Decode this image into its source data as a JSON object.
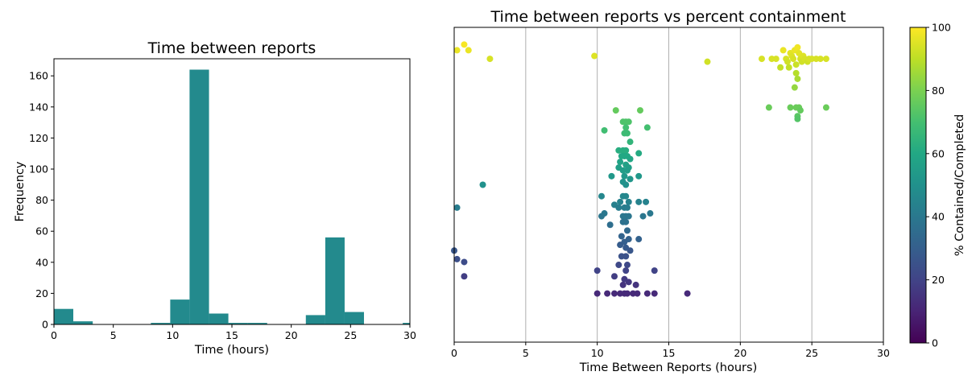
{
  "chart_data": [
    {
      "type": "bar",
      "title": "Time between reports",
      "xlabel": "Time (hours)",
      "ylabel": "Frequency",
      "xlim": [
        0,
        30
      ],
      "ylim": [
        0,
        171
      ],
      "xticks": [
        0,
        5,
        10,
        15,
        20,
        25,
        30
      ],
      "yticks": [
        0,
        20,
        40,
        60,
        80,
        100,
        120,
        140,
        160
      ],
      "bar_color": "#238a8d",
      "bins": [
        {
          "start": 0.0,
          "end": 1.63,
          "count": 10
        },
        {
          "start": 1.63,
          "end": 3.27,
          "count": 2
        },
        {
          "start": 8.17,
          "end": 9.8,
          "count": 1
        },
        {
          "start": 9.8,
          "end": 11.43,
          "count": 16
        },
        {
          "start": 11.43,
          "end": 13.07,
          "count": 164
        },
        {
          "start": 13.07,
          "end": 14.7,
          "count": 7
        },
        {
          "start": 14.7,
          "end": 16.33,
          "count": 1
        },
        {
          "start": 16.33,
          "end": 17.97,
          "count": 1
        },
        {
          "start": 21.23,
          "end": 22.87,
          "count": 6
        },
        {
          "start": 22.87,
          "end": 24.5,
          "count": 56
        },
        {
          "start": 24.5,
          "end": 26.13,
          "count": 8
        },
        {
          "start": 29.4,
          "end": 31.03,
          "count": 1
        }
      ]
    },
    {
      "type": "scatter",
      "title": "Time between reports vs percent containment",
      "xlabel": "Time Between Reports (hours)",
      "xlim": [
        0,
        30
      ],
      "ylim": [
        -5,
        105
      ],
      "xticks": [
        0,
        5,
        10,
        15,
        20,
        25,
        30
      ],
      "grid": "vertical",
      "colormap": "viridis",
      "colorbar": {
        "label": "% Contained/Completed",
        "ticks": [
          0,
          20,
          40,
          60,
          80,
          100
        ],
        "range": [
          0,
          100
        ]
      },
      "points": [
        [
          0.7,
          99
        ],
        [
          0.2,
          97
        ],
        [
          1.0,
          97
        ],
        [
          2.5,
          94
        ],
        [
          9.8,
          95
        ],
        [
          17.7,
          93
        ],
        [
          21.5,
          94
        ],
        [
          22.2,
          94
        ],
        [
          22.5,
          94
        ],
        [
          22.8,
          91
        ],
        [
          23.0,
          97
        ],
        [
          23.2,
          94
        ],
        [
          23.3,
          93
        ],
        [
          23.4,
          91
        ],
        [
          23.5,
          96
        ],
        [
          23.6,
          95
        ],
        [
          23.7,
          94
        ],
        [
          23.8,
          97
        ],
        [
          23.9,
          92
        ],
        [
          24.0,
          98
        ],
        [
          24.1,
          96
        ],
        [
          24.2,
          94
        ],
        [
          24.3,
          93
        ],
        [
          24.4,
          95
        ],
        [
          24.5,
          94
        ],
        [
          24.7,
          93
        ],
        [
          24.8,
          94
        ],
        [
          25.0,
          94
        ],
        [
          25.3,
          94
        ],
        [
          25.6,
          94
        ],
        [
          26.0,
          94
        ],
        [
          23.9,
          89
        ],
        [
          24.0,
          87
        ],
        [
          23.8,
          84
        ],
        [
          22.0,
          77
        ],
        [
          23.5,
          77
        ],
        [
          23.9,
          77
        ],
        [
          24.1,
          77
        ],
        [
          24.0,
          74
        ],
        [
          24.0,
          73
        ],
        [
          26.0,
          77
        ],
        [
          24.2,
          76
        ],
        [
          11.3,
          76
        ],
        [
          13.0,
          76
        ],
        [
          11.8,
          72
        ],
        [
          12.0,
          72
        ],
        [
          12.2,
          72
        ],
        [
          12.0,
          70
        ],
        [
          10.5,
          69
        ],
        [
          13.5,
          70
        ],
        [
          11.9,
          68
        ],
        [
          12.1,
          68
        ],
        [
          12.3,
          65
        ],
        [
          11.5,
          62
        ],
        [
          11.8,
          62
        ],
        [
          12.0,
          62
        ],
        [
          12.9,
          61
        ],
        [
          11.7,
          60
        ],
        [
          11.9,
          60
        ],
        [
          12.1,
          60
        ],
        [
          12.3,
          59
        ],
        [
          11.6,
          58
        ],
        [
          12.0,
          57
        ],
        [
          12.2,
          56
        ],
        [
          11.5,
          56
        ],
        [
          11.8,
          55
        ],
        [
          12.1,
          55
        ],
        [
          11.0,
          53
        ],
        [
          11.9,
          53
        ],
        [
          12.3,
          52
        ],
        [
          12.9,
          53
        ],
        [
          11.8,
          51
        ],
        [
          12.0,
          50
        ],
        [
          10.3,
          46
        ],
        [
          11.8,
          46
        ],
        [
          12.0,
          46
        ],
        [
          11.6,
          44
        ],
        [
          11.2,
          43
        ],
        [
          12.2,
          44
        ],
        [
          12.9,
          44
        ],
        [
          13.4,
          44
        ],
        [
          11.5,
          42
        ],
        [
          11.9,
          42
        ],
        [
          12.1,
          42
        ],
        [
          10.5,
          40
        ],
        [
          10.3,
          39
        ],
        [
          11.8,
          39
        ],
        [
          12.0,
          39
        ],
        [
          12.2,
          39
        ],
        [
          13.7,
          40
        ],
        [
          13.2,
          39
        ],
        [
          11.8,
          37
        ],
        [
          12.0,
          37
        ],
        [
          10.9,
          36
        ],
        [
          12.1,
          34
        ],
        [
          11.7,
          32
        ],
        [
          12.2,
          31
        ],
        [
          12.9,
          31
        ],
        [
          11.9,
          30
        ],
        [
          11.6,
          29
        ],
        [
          12.0,
          28
        ],
        [
          12.3,
          27
        ],
        [
          11.7,
          25
        ],
        [
          12.0,
          25
        ],
        [
          11.5,
          22
        ],
        [
          12.1,
          22
        ],
        [
          10.0,
          20
        ],
        [
          12.0,
          20
        ],
        [
          14.0,
          20
        ],
        [
          11.2,
          18
        ],
        [
          11.9,
          17
        ],
        [
          12.2,
          16
        ],
        [
          12.7,
          15
        ],
        [
          11.8,
          15
        ],
        [
          10.0,
          12
        ],
        [
          10.7,
          12
        ],
        [
          11.2,
          12
        ],
        [
          11.6,
          12
        ],
        [
          11.9,
          12
        ],
        [
          12.1,
          12
        ],
        [
          12.5,
          12
        ],
        [
          12.8,
          12
        ],
        [
          13.5,
          12
        ],
        [
          14.0,
          12
        ],
        [
          16.3,
          12
        ],
        [
          2.0,
          50
        ],
        [
          0.2,
          42
        ],
        [
          0.0,
          27
        ],
        [
          0.2,
          24
        ],
        [
          0.7,
          23
        ],
        [
          0.7,
          18
        ]
      ]
    }
  ]
}
